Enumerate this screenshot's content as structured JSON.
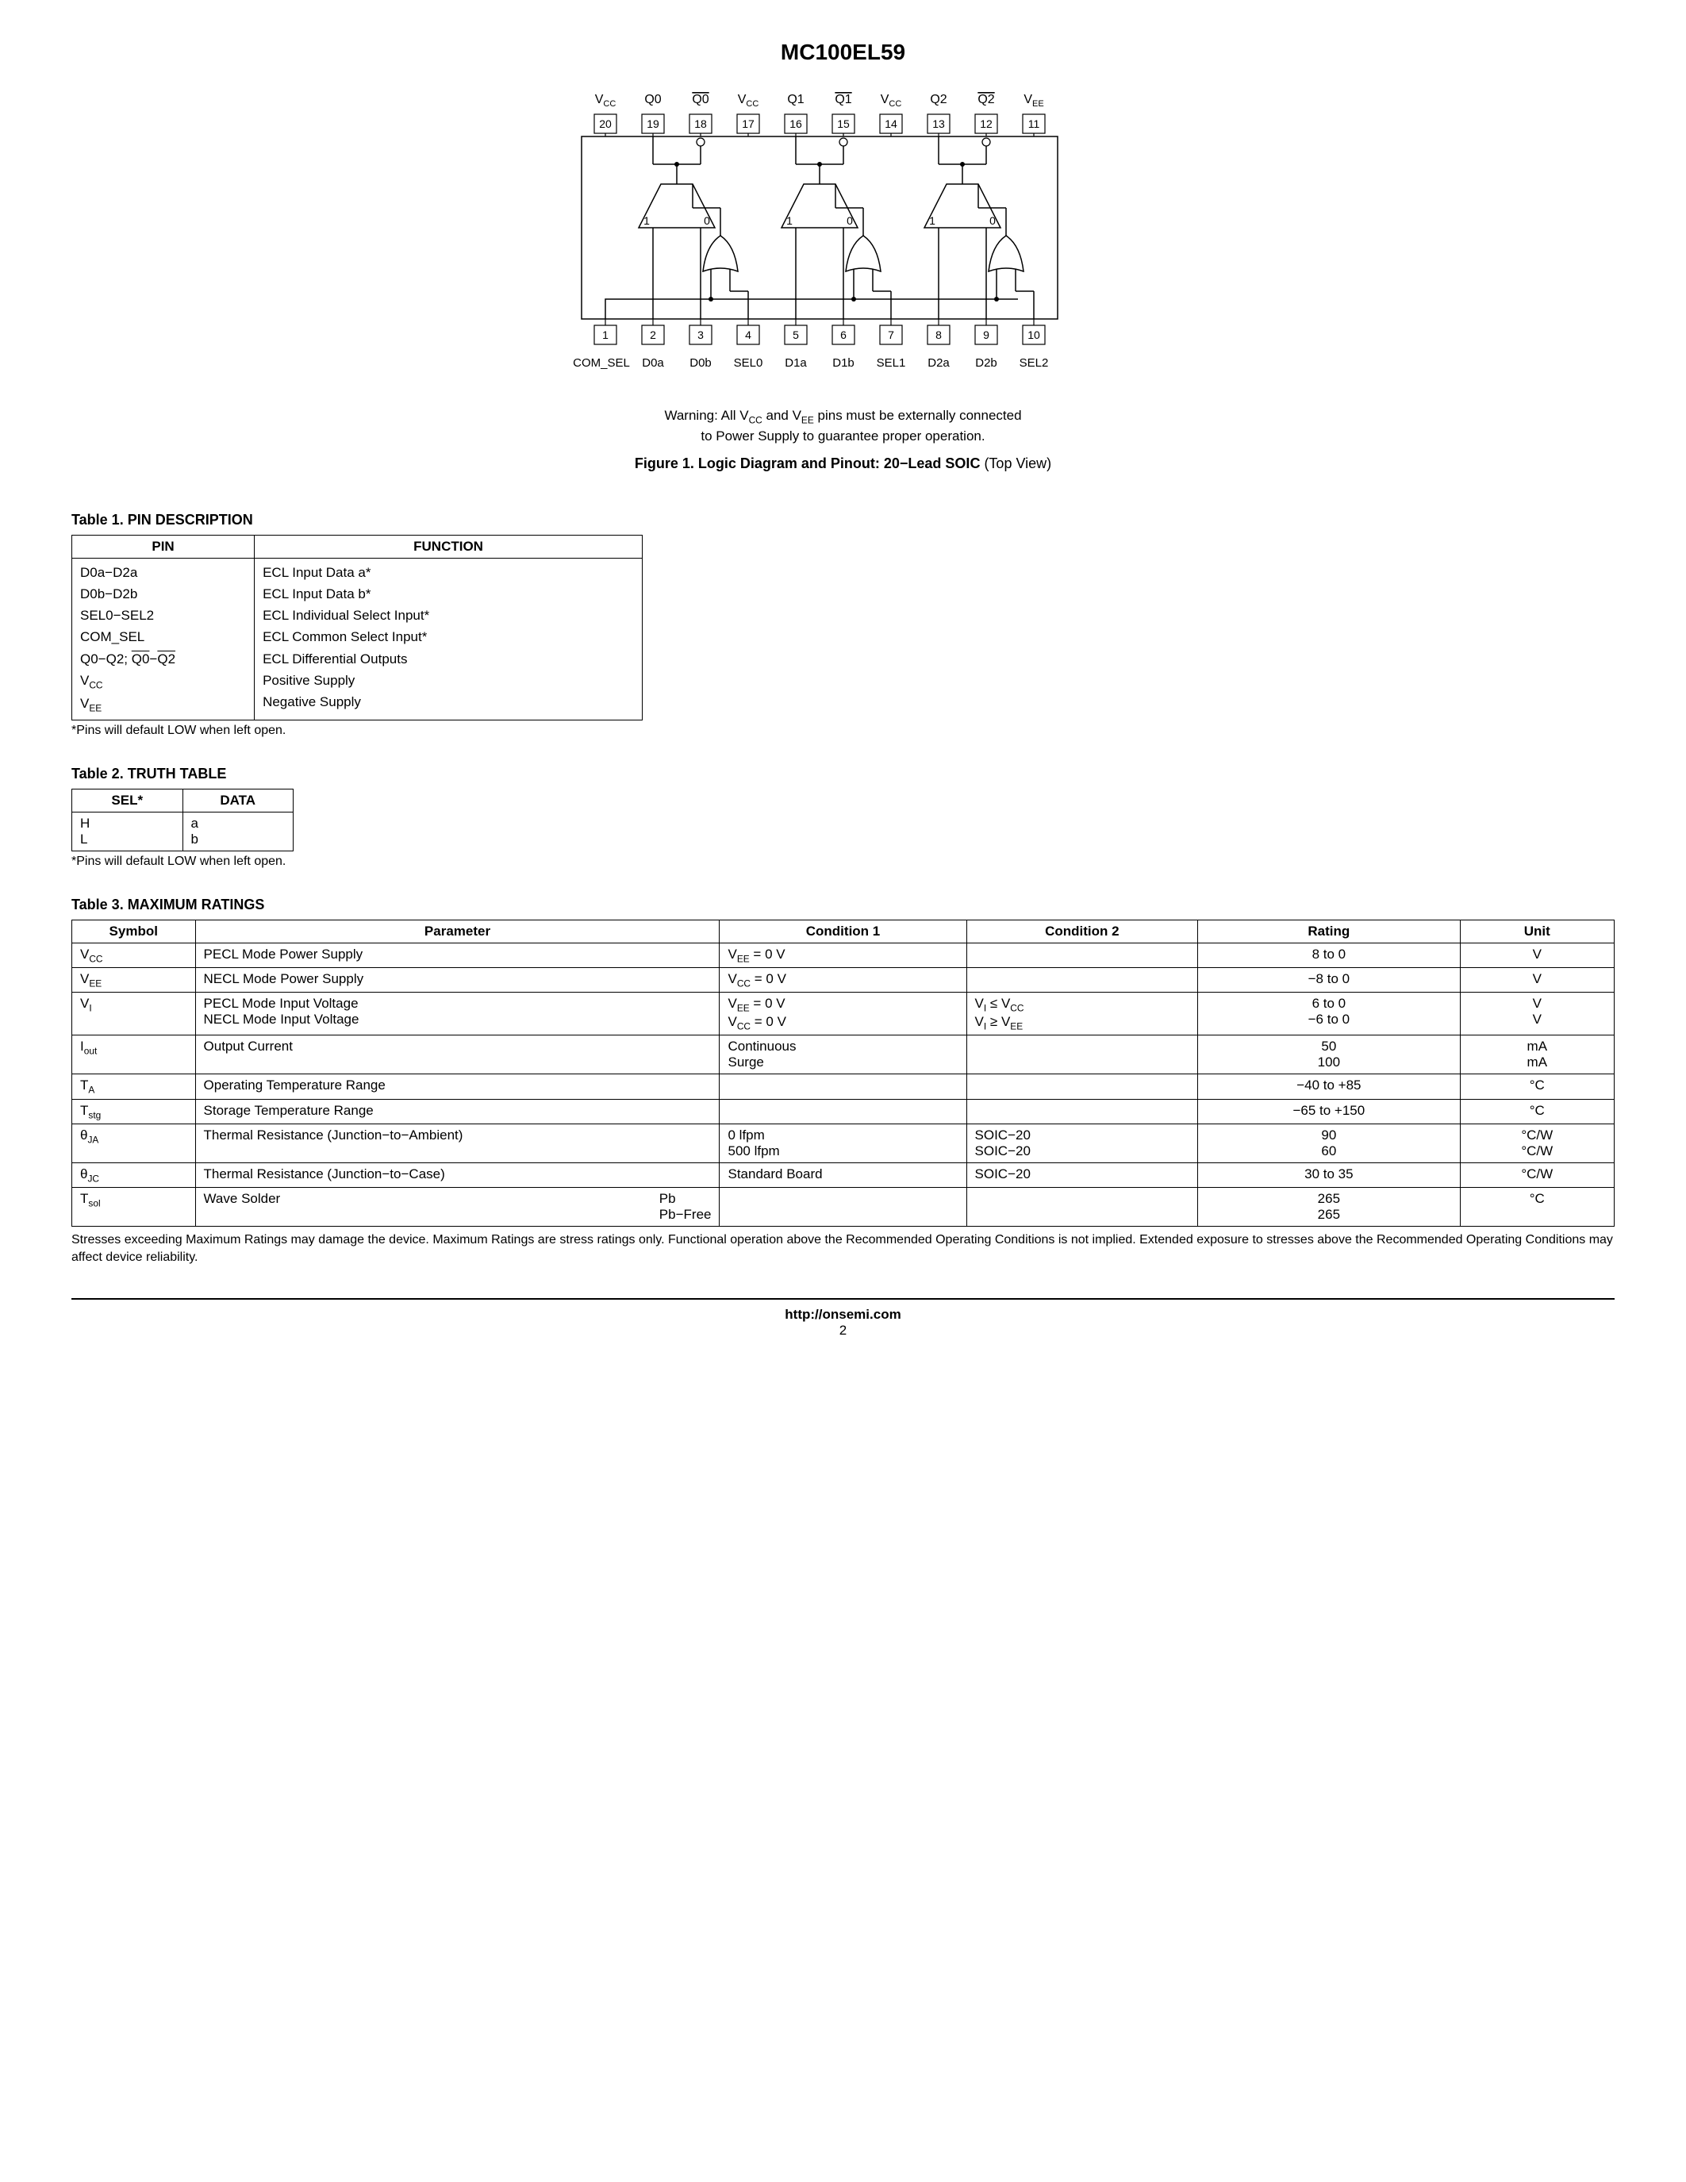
{
  "document": {
    "title": "MC100EL59",
    "warning_line1_prefix": "Warning: All V",
    "warning_line1_sub1": "CC",
    "warning_line1_mid": " and V",
    "warning_line1_sub2": "EE",
    "warning_line1_suffix": " pins must be externally connected",
    "warning_line2": "to Power Supply to guarantee proper operation.",
    "figure_caption_bold": "Figure 1. Logic Diagram and Pinout: 20−Lead SOIC ",
    "figure_caption_reg": "(Top View)",
    "footer_url": "http://onsemi.com",
    "footer_page": "2"
  },
  "diagram": {
    "top_labels": [
      "VCC",
      "Q0",
      "Q0_bar",
      "VCC",
      "Q1",
      "Q1_bar",
      "VCC",
      "Q2",
      "Q2_bar",
      "VEE"
    ],
    "top_pins": [
      "20",
      "19",
      "18",
      "17",
      "16",
      "15",
      "14",
      "13",
      "12",
      "11"
    ],
    "bottom_pins": [
      "1",
      "2",
      "3",
      "4",
      "5",
      "6",
      "7",
      "8",
      "9",
      "10"
    ],
    "bottom_labels": [
      "COM_SEL",
      "D0a",
      "D0b",
      "SEL0",
      "D1a",
      "D1b",
      "SEL1",
      "D2a",
      "D2b",
      "SEL2"
    ],
    "mux_left": "1",
    "mux_right": "0",
    "stroke": "#000000",
    "fill": "#ffffff",
    "font": "Arial"
  },
  "table1": {
    "title": "Table 1. PIN DESCRIPTION",
    "headers": [
      "PIN",
      "FUNCTION"
    ],
    "rows": [
      {
        "pin": "D0a−D2a",
        "func": "ECL Input Data a*"
      },
      {
        "pin": "D0b−D2b",
        "func": "ECL Input Data b*"
      },
      {
        "pin": "SEL0−SEL2",
        "func": "ECL Individual Select Input*"
      },
      {
        "pin": "COM_SEL",
        "func": "ECL Common Select Input*"
      },
      {
        "pin_html": "Q0−Q2; <span class=\"overline\">Q0</span>−<span class=\"overline\">Q2</span>",
        "func": "ECL Differential Outputs"
      },
      {
        "pin_html": "V<sub>CC</sub>",
        "func": "Positive Supply"
      },
      {
        "pin_html": "V<sub>EE</sub>",
        "func": "Negative Supply"
      }
    ],
    "footnote": "*Pins will default LOW when left open."
  },
  "table2": {
    "title": "Table 2. TRUTH TABLE",
    "headers": [
      "SEL*",
      "DATA"
    ],
    "rows": [
      {
        "sel": "H",
        "data": "a"
      },
      {
        "sel": "L",
        "data": "b"
      }
    ],
    "footnote": "*Pins will default LOW when left open."
  },
  "table3": {
    "title": "Table 3. MAXIMUM RATINGS",
    "headers": [
      "Symbol",
      "Parameter",
      "Condition 1",
      "Condition 2",
      "Rating",
      "Unit"
    ],
    "rows": [
      {
        "sym": "V<sub>CC</sub>",
        "param": "PECL Mode Power Supply",
        "c1": "V<sub>EE</sub> = 0 V",
        "c2": "",
        "rating": "8 to 0",
        "unit": "V"
      },
      {
        "sym": "V<sub>EE</sub>",
        "param": "NECL Mode Power Supply",
        "c1": "V<sub>CC</sub> = 0 V",
        "c2": "",
        "rating": "−8 to 0",
        "unit": "V"
      },
      {
        "sym": "V<sub>I</sub>",
        "param": "PECL Mode Input Voltage<br>NECL Mode Input Voltage",
        "c1": "V<sub>EE</sub> = 0 V<br>V<sub>CC</sub> = 0 V",
        "c2": "V<sub>I</sub> ≤ V<sub>CC</sub><br>V<sub>I</sub> ≥ V<sub>EE</sub>",
        "rating": "6 to 0<br>−6 to 0",
        "unit": "V<br>V"
      },
      {
        "sym": "I<sub>out</sub>",
        "param": "Output Current",
        "c1": "Continuous<br>Surge",
        "c2": "",
        "rating": "50<br>100",
        "unit": "mA<br>mA"
      },
      {
        "sym": "T<sub>A</sub>",
        "param": "Operating Temperature Range",
        "c1": "",
        "c2": "",
        "rating": "−40 to +85",
        "unit": "°C"
      },
      {
        "sym": "T<sub>stg</sub>",
        "param": "Storage Temperature Range",
        "c1": "",
        "c2": "",
        "rating": "−65 to +150",
        "unit": "°C"
      },
      {
        "sym": "θ<sub>JA</sub>",
        "param": "Thermal Resistance (Junction−to−Ambient)",
        "c1": "0 lfpm<br>500 lfpm",
        "c2": "SOIC−20<br>SOIC−20",
        "rating": "90<br>60",
        "unit": "°C/W<br>°C/W"
      },
      {
        "sym": "θ<sub>JC</sub>",
        "param": "Thermal Resistance (Junction−to−Case)",
        "c1": "Standard Board",
        "c2": "SOIC−20",
        "rating": "30 to 35",
        "unit": "°C/W"
      },
      {
        "sym": "T<sub>sol</sub>",
        "param": "Wave Solder<span class=\"right-in-cell\">Pb<br>Pb−Free</span>",
        "c1": "",
        "c2": "",
        "rating": "265<br>265",
        "unit": "°C"
      }
    ],
    "footnote": "Stresses exceeding Maximum Ratings may damage the device. Maximum Ratings are stress ratings only. Functional operation above the Recommended Operating Conditions is not implied. Extended exposure to stresses above the Recommended Operating Conditions may affect device reliability."
  },
  "col_widths": {
    "table3": [
      "8%",
      "34%",
      "16%",
      "15%",
      "17%",
      "10%"
    ]
  }
}
